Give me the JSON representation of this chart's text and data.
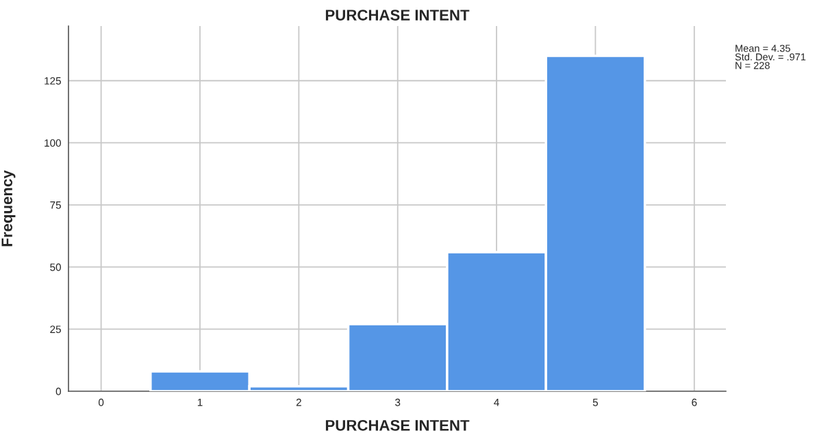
{
  "chart_data": {
    "type": "histogram",
    "title": "PURCHASE INTENT",
    "xlabel": "PURCHASE INTENT",
    "ylabel": "Frequency",
    "bins": [
      0.5,
      1.5,
      2.5,
      3.5,
      4.5,
      5.5
    ],
    "values": [
      8,
      2,
      27,
      56,
      135
    ],
    "color": "#5596e6",
    "xlim": [
      -0.33,
      6.32
    ],
    "xticks": [
      0,
      1,
      2,
      3,
      4,
      5,
      6
    ],
    "ylim": [
      0,
      147
    ],
    "yticks": [
      0,
      25,
      50,
      75,
      100,
      125
    ],
    "grid": true,
    "annotations": [
      "Mean = 4.35\nStd. Dev. = .971\nN = 228"
    ]
  }
}
